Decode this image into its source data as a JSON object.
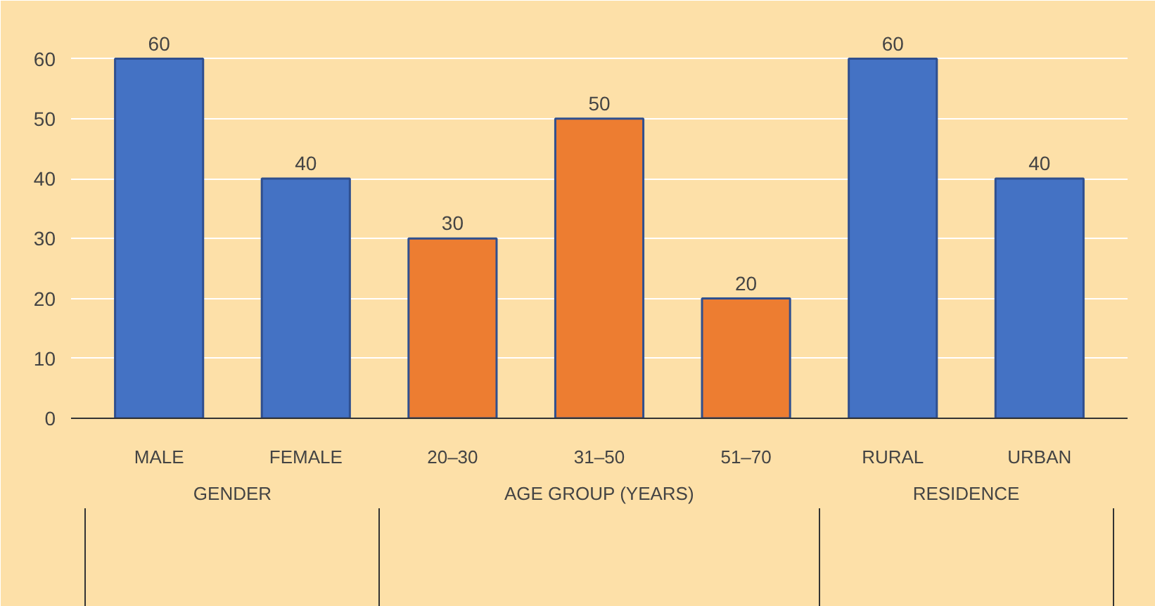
{
  "chart_data": {
    "type": "bar",
    "categories": [
      "MALE",
      "FEMALE",
      "20–30",
      "31–50",
      "51–70",
      "RURAL",
      "URBAN"
    ],
    "values": [
      60,
      40,
      30,
      50,
      20,
      60,
      40
    ],
    "colors": [
      "#4472c4",
      "#4472c4",
      "#ed7d31",
      "#ed7d31",
      "#ed7d31",
      "#4472c4",
      "#4472c4"
    ],
    "ylim": [
      0,
      65
    ],
    "yticks": [
      0,
      10,
      20,
      30,
      40,
      50,
      60
    ],
    "grid": "y",
    "data_labels": true,
    "annotations": [
      "GENDER",
      "AGE GROUP (YEARS)",
      "RESIDENCE"
    ]
  }
}
